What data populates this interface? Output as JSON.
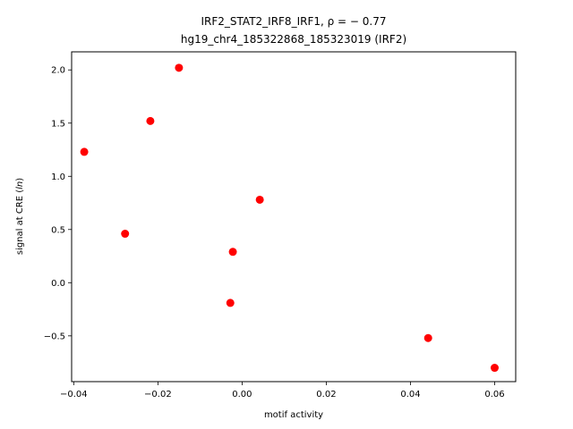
{
  "chart_data": {
    "type": "scatter",
    "title_line1_prefix": "IRF2_STAT2_IRF8_IRF1, ",
    "title_line1_rho": "ρ = − 0.77",
    "title_line2": "hg19_chr4_185322868_185323019 (IRF2)",
    "xlabel": "motif activity",
    "ylabel": "signal at CRE (",
    "ylabel_italic": "ln",
    "ylabel_suffix": ")",
    "xlim": [
      -0.0405,
      0.065
    ],
    "ylim": [
      -0.93,
      2.17
    ],
    "grid": false,
    "marker_color": "#ff0000",
    "x_ticks": [
      -0.04,
      -0.02,
      0.0,
      0.02,
      0.04,
      0.06
    ],
    "x_tick_labels": [
      "−0.04",
      "−0.02",
      "0.00",
      "0.02",
      "0.04",
      "0.06"
    ],
    "y_ticks": [
      -0.5,
      0.0,
      0.5,
      1.0,
      1.5,
      2.0
    ],
    "y_tick_labels": [
      "−0.5",
      "0.0",
      "0.5",
      "1.0",
      "1.5",
      "2.0"
    ],
    "points": [
      {
        "x": -0.0375,
        "y": 1.23
      },
      {
        "x": -0.0278,
        "y": 0.46
      },
      {
        "x": -0.0218,
        "y": 1.52
      },
      {
        "x": -0.015,
        "y": 2.02
      },
      {
        "x": -0.0028,
        "y": -0.19
      },
      {
        "x": -0.0022,
        "y": 0.29
      },
      {
        "x": 0.0042,
        "y": 0.78
      },
      {
        "x": 0.0442,
        "y": -0.52
      },
      {
        "x": 0.06,
        "y": -0.8
      }
    ]
  }
}
